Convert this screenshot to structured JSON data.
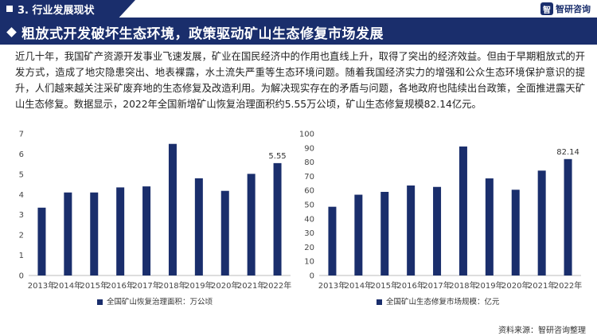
{
  "header": {
    "section_label": "3. 行业发展现状",
    "logo_text": "智研咨询",
    "logo_mark": "智"
  },
  "title": "粗放式开发破坏生态环境，政策驱动矿山生态修复市场发展",
  "body_text": "近几十年，我国矿产资源开发事业飞速发展，矿业在国民经济中的作用也直线上升，取得了突出的经济效益。但由于早期粗放式的开发方式，造成了地灾隐患突出、地表裸露，水土流失严重等生态环境问题。随着我国经济实力的增强和公众生态环境保护意识的提升，人们越来越关注采矿废弃地的生态修复及改造利用。为解决现实存在的矛盾与问题，各地政府也陆续出台政策，全面推进露天矿山生态修复。数据显示，2022年全国新增矿山恢复治理面积约5.55万公顷，矿山生态修复规模82.14亿元。",
  "colors": {
    "primary": "#1a2e6c",
    "bar": "#1a2e6c"
  },
  "chart_data": [
    {
      "type": "bar",
      "categories": [
        "2013年",
        "2014年",
        "2015年",
        "2016年",
        "2017年",
        "2018年",
        "2019年",
        "2020年",
        "2021年",
        "2022年"
      ],
      "series": [
        {
          "name": "全国矿山恢复治理面积：万公顷",
          "values": [
            3.35,
            4.1,
            4.1,
            4.35,
            4.4,
            6.5,
            4.8,
            4.18,
            5.02,
            5.55
          ]
        }
      ],
      "data_labels": [
        {
          "index": 9,
          "text": "5.55"
        }
      ],
      "yticks": [
        0,
        1,
        2,
        3,
        4,
        5,
        6,
        7
      ],
      "ylim": [
        0,
        7
      ],
      "legend_position": "bottom"
    },
    {
      "type": "bar",
      "categories": [
        "2013年",
        "2014年",
        "2015年",
        "2016年",
        "2017年",
        "2018年",
        "2019年",
        "2020年",
        "2021年",
        "2022年"
      ],
      "series": [
        {
          "name": "全国矿山生态修复市场规模：亿元",
          "values": [
            48.5,
            57,
            59,
            63.5,
            62.5,
            91,
            68.5,
            60.5,
            74,
            82.14
          ]
        }
      ],
      "data_labels": [
        {
          "index": 9,
          "text": "82.14"
        }
      ],
      "yticks": [
        0,
        10,
        20,
        30,
        40,
        50,
        60,
        70,
        80,
        90,
        100
      ],
      "ylim": [
        0,
        100
      ],
      "legend_position": "bottom"
    }
  ],
  "footer": {
    "source_label": "资料来源：",
    "source_value": "智研咨询整理"
  }
}
